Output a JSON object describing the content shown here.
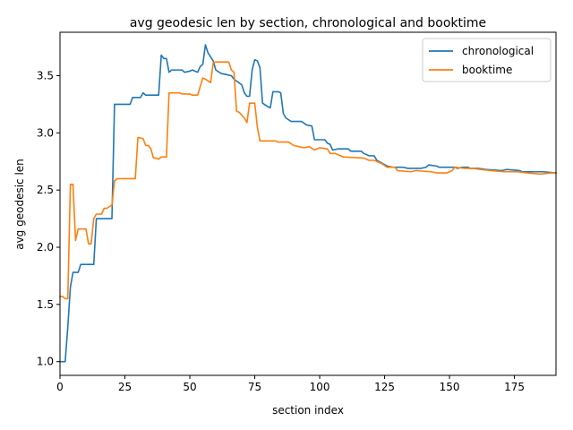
{
  "chart_data": {
    "type": "line",
    "title": "avg geodesic len by section, chronological and booktime",
    "xlabel": "section index",
    "ylabel": "avg geodesic len",
    "xlim": [
      0,
      191
    ],
    "ylim": [
      0.88,
      3.88
    ],
    "x_ticks": [
      0,
      25,
      50,
      75,
      100,
      125,
      150,
      175
    ],
    "x_tick_labels": [
      "0",
      "25",
      "50",
      "75",
      "100",
      "125",
      "150",
      "175"
    ],
    "y_ticks": [
      1.0,
      1.5,
      2.0,
      2.5,
      3.0,
      3.5
    ],
    "y_tick_labels": [
      "1.0",
      "1.5",
      "2.0",
      "2.5",
      "3.0",
      "3.5"
    ],
    "grid": false,
    "legend_position": "top-right",
    "series": [
      {
        "name": "chronological",
        "color": "#1f77b4",
        "points": [
          [
            0,
            1.0
          ],
          [
            2,
            1.0
          ],
          [
            3,
            1.3
          ],
          [
            4,
            1.65
          ],
          [
            5,
            1.78
          ],
          [
            7,
            1.78
          ],
          [
            8,
            1.85
          ],
          [
            13,
            1.85
          ],
          [
            14,
            2.25
          ],
          [
            20,
            2.25
          ],
          [
            21,
            3.25
          ],
          [
            27,
            3.25
          ],
          [
            28,
            3.31
          ],
          [
            31,
            3.31
          ],
          [
            32,
            3.35
          ],
          [
            33,
            3.33
          ],
          [
            38,
            3.33
          ],
          [
            39,
            3.68
          ],
          [
            40,
            3.65
          ],
          [
            41,
            3.65
          ],
          [
            42,
            3.53
          ],
          [
            43,
            3.55
          ],
          [
            47,
            3.55
          ],
          [
            48,
            3.53
          ],
          [
            50,
            3.54
          ],
          [
            51,
            3.55
          ],
          [
            53,
            3.53
          ],
          [
            54,
            3.58
          ],
          [
            55,
            3.6
          ],
          [
            56,
            3.77
          ],
          [
            57,
            3.7
          ],
          [
            59,
            3.63
          ],
          [
            60,
            3.55
          ],
          [
            62,
            3.52
          ],
          [
            66,
            3.5
          ],
          [
            67,
            3.47
          ],
          [
            70,
            3.42
          ],
          [
            71,
            3.35
          ],
          [
            72,
            3.32
          ],
          [
            73,
            3.32
          ],
          [
            74,
            3.55
          ],
          [
            75,
            3.64
          ],
          [
            76,
            3.63
          ],
          [
            77,
            3.57
          ],
          [
            78,
            3.26
          ],
          [
            80,
            3.23
          ],
          [
            81,
            3.22
          ],
          [
            82,
            3.36
          ],
          [
            84,
            3.36
          ],
          [
            85,
            3.35
          ],
          [
            86,
            3.17
          ],
          [
            87,
            3.13
          ],
          [
            89,
            3.1
          ],
          [
            93,
            3.1
          ],
          [
            95,
            3.07
          ],
          [
            97,
            3.06
          ],
          [
            98,
            2.94
          ],
          [
            102,
            2.94
          ],
          [
            103,
            2.91
          ],
          [
            104,
            2.9
          ],
          [
            105,
            2.85
          ],
          [
            107,
            2.86
          ],
          [
            111,
            2.86
          ],
          [
            112,
            2.84
          ],
          [
            116,
            2.84
          ],
          [
            117,
            2.82
          ],
          [
            119,
            2.8
          ],
          [
            121,
            2.8
          ],
          [
            122,
            2.76
          ],
          [
            126,
            2.71
          ],
          [
            128,
            2.7
          ],
          [
            132,
            2.7
          ],
          [
            134,
            2.69
          ],
          [
            139,
            2.69
          ],
          [
            141,
            2.7
          ],
          [
            142,
            2.72
          ],
          [
            145,
            2.71
          ],
          [
            146,
            2.7
          ],
          [
            152,
            2.7
          ],
          [
            153,
            2.69
          ],
          [
            155,
            2.7
          ],
          [
            157,
            2.7
          ],
          [
            158,
            2.69
          ],
          [
            161,
            2.69
          ],
          [
            164,
            2.68
          ],
          [
            170,
            2.67
          ],
          [
            172,
            2.68
          ],
          [
            177,
            2.67
          ],
          [
            178,
            2.66
          ],
          [
            186,
            2.66
          ],
          [
            191,
            2.65
          ]
        ]
      },
      {
        "name": "booktime",
        "color": "#ff7f0e",
        "points": [
          [
            0,
            1.57
          ],
          [
            1,
            1.57
          ],
          [
            2,
            1.55
          ],
          [
            3,
            1.55
          ],
          [
            4,
            2.55
          ],
          [
            5,
            2.55
          ],
          [
            6,
            2.06
          ],
          [
            7,
            2.16
          ],
          [
            10,
            2.16
          ],
          [
            11,
            2.03
          ],
          [
            12,
            2.03
          ],
          [
            13,
            2.25
          ],
          [
            14,
            2.29
          ],
          [
            16,
            2.29
          ],
          [
            17,
            2.34
          ],
          [
            18,
            2.34
          ],
          [
            20,
            2.37
          ],
          [
            21,
            2.58
          ],
          [
            22,
            2.6
          ],
          [
            29,
            2.6
          ],
          [
            30,
            2.96
          ],
          [
            32,
            2.95
          ],
          [
            33,
            2.89
          ],
          [
            34,
            2.89
          ],
          [
            35,
            2.86
          ],
          [
            36,
            2.78
          ],
          [
            37,
            2.78
          ],
          [
            38,
            2.77
          ],
          [
            39,
            2.79
          ],
          [
            41,
            2.79
          ],
          [
            42,
            3.35
          ],
          [
            46,
            3.35
          ],
          [
            47,
            3.34
          ],
          [
            50,
            3.34
          ],
          [
            51,
            3.33
          ],
          [
            53,
            3.33
          ],
          [
            55,
            3.48
          ],
          [
            56,
            3.47
          ],
          [
            58,
            3.44
          ],
          [
            59,
            3.61
          ],
          [
            60,
            3.62
          ],
          [
            62,
            3.62
          ],
          [
            65,
            3.62
          ],
          [
            66,
            3.55
          ],
          [
            67,
            3.53
          ],
          [
            68,
            3.19
          ],
          [
            69,
            3.18
          ],
          [
            71,
            3.13
          ],
          [
            72,
            3.09
          ],
          [
            73,
            3.26
          ],
          [
            75,
            3.26
          ],
          [
            76,
            3.05
          ],
          [
            77,
            2.93
          ],
          [
            78,
            2.93
          ],
          [
            83,
            2.93
          ],
          [
            84,
            2.92
          ],
          [
            88,
            2.92
          ],
          [
            90,
            2.89
          ],
          [
            94,
            2.87
          ],
          [
            96,
            2.88
          ],
          [
            98,
            2.85
          ],
          [
            100,
            2.87
          ],
          [
            103,
            2.86
          ],
          [
            104,
            2.82
          ],
          [
            106,
            2.82
          ],
          [
            109,
            2.79
          ],
          [
            117,
            2.78
          ],
          [
            119,
            2.76
          ],
          [
            121,
            2.76
          ],
          [
            122,
            2.75
          ],
          [
            124,
            2.73
          ],
          [
            126,
            2.7
          ],
          [
            129,
            2.7
          ],
          [
            130,
            2.67
          ],
          [
            135,
            2.66
          ],
          [
            137,
            2.67
          ],
          [
            143,
            2.66
          ],
          [
            145,
            2.65
          ],
          [
            149,
            2.65
          ],
          [
            151,
            2.67
          ],
          [
            152,
            2.7
          ],
          [
            156,
            2.69
          ],
          [
            159,
            2.69
          ],
          [
            162,
            2.68
          ],
          [
            166,
            2.67
          ],
          [
            171,
            2.66
          ],
          [
            176,
            2.66
          ],
          [
            180,
            2.65
          ],
          [
            185,
            2.64
          ],
          [
            189,
            2.65
          ],
          [
            191,
            2.65
          ]
        ]
      }
    ]
  }
}
